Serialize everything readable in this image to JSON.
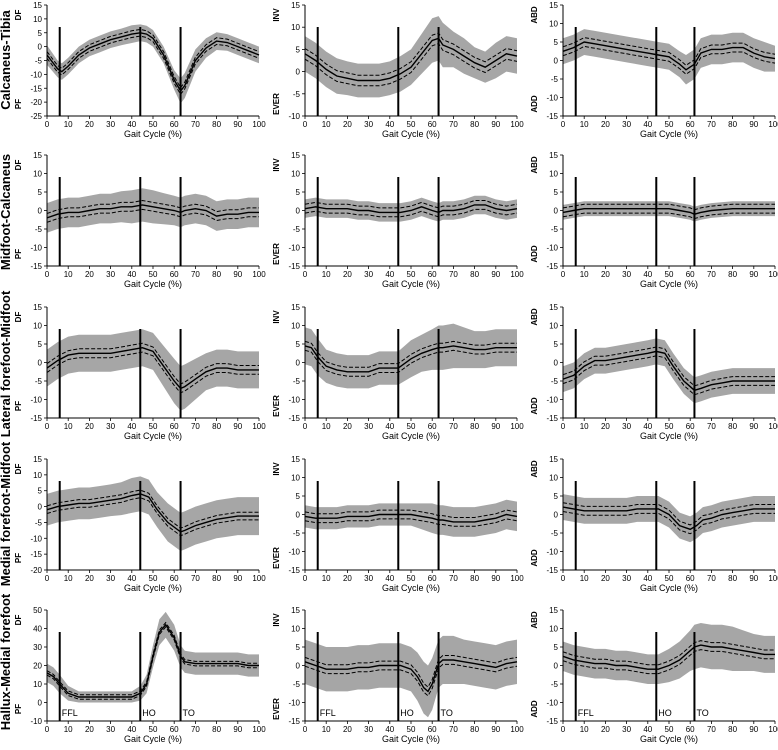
{
  "row_labels": [
    "Calcaneus-Tibia",
    "Midfoot-Calcaneus",
    "Lateral forefoot-Midfoot",
    "Medial forefoot-Midfoot",
    "Hallux-Medial forefoot"
  ],
  "x_axis": {
    "label": "Gait Cycle (%)",
    "ticks": [
      0,
      10,
      20,
      30,
      40,
      50,
      60,
      70,
      80,
      90,
      100
    ]
  },
  "event_labels": [
    "FFL",
    "HO",
    "TO"
  ],
  "colors": {
    "band": "#a6a6a6",
    "line": "#000000"
  },
  "chart_data": [
    {
      "type": "line",
      "row": 0,
      "col": 0,
      "ylim": [
        -25,
        15
      ],
      "yticks": [
        15,
        10,
        5,
        0,
        -5,
        -10,
        -15,
        -20,
        -25
      ],
      "dir_top": "DF",
      "dir_bottom": "PF",
      "events": [
        6,
        44,
        63
      ],
      "show_event_labels": false,
      "x": [
        0,
        5,
        7,
        10,
        15,
        20,
        25,
        30,
        35,
        40,
        44,
        47,
        50,
        55,
        60,
        63,
        65,
        70,
        75,
        80,
        85,
        90,
        95,
        100
      ],
      "mean": [
        -3,
        -8,
        -9,
        -7,
        -3,
        -0.5,
        1,
        2.5,
        3.5,
        4.5,
        5,
        4.5,
        3,
        -3,
        -12,
        -16,
        -14,
        -5,
        -0.5,
        2,
        1.5,
        0,
        -1.5,
        -3
      ],
      "sd": [
        3.5,
        3,
        3,
        3,
        3,
        3,
        3,
        3,
        3,
        3.2,
        3,
        3,
        3,
        3,
        3.5,
        4.5,
        4.5,
        4,
        3.5,
        3.2,
        3,
        3,
        3,
        3
      ]
    },
    {
      "type": "line",
      "row": 0,
      "col": 1,
      "ylim": [
        -10,
        15
      ],
      "yticks": [
        15,
        10,
        5,
        0,
        -5,
        -10
      ],
      "dir_top": "INV",
      "dir_bottom": "EVER",
      "events": [
        6,
        44,
        63
      ],
      "show_event_labels": false,
      "x": [
        0,
        5,
        10,
        15,
        20,
        25,
        30,
        35,
        40,
        45,
        50,
        55,
        60,
        63,
        65,
        70,
        75,
        80,
        85,
        90,
        95,
        100
      ],
      "mean": [
        4,
        2.5,
        0.5,
        -1,
        -1.5,
        -2,
        -2,
        -2,
        -1.5,
        -0.5,
        1,
        4,
        7,
        7.5,
        6,
        5,
        3.5,
        2,
        1,
        2.5,
        4,
        3.5
      ],
      "sd": [
        4,
        4,
        4,
        4,
        3.8,
        3.8,
        3.8,
        3.8,
        3.8,
        4,
        4,
        4.5,
        5,
        5,
        5,
        4,
        4,
        3.5,
        3.5,
        4,
        4,
        4
      ]
    },
    {
      "type": "line",
      "row": 0,
      "col": 2,
      "ylim": [
        -15,
        15
      ],
      "yticks": [
        15,
        10,
        5,
        0,
        -5,
        -10,
        -15
      ],
      "dir_top": "ABD",
      "dir_bottom": "ADD",
      "events": [
        6,
        44,
        62
      ],
      "show_event_labels": false,
      "x": [
        0,
        5,
        10,
        15,
        20,
        25,
        30,
        35,
        40,
        45,
        50,
        55,
        58,
        62,
        65,
        70,
        75,
        80,
        85,
        90,
        95,
        100
      ],
      "mean": [
        2.5,
        3.5,
        5,
        4.5,
        4,
        3.5,
        3,
        2.5,
        2,
        1.5,
        1,
        -1,
        -2.5,
        -1,
        2,
        3,
        3,
        3.5,
        3.5,
        2,
        1,
        0.5
      ],
      "sd": [
        3.5,
        3.5,
        3.5,
        3.5,
        3.5,
        3.5,
        3.5,
        3.5,
        3.5,
        3.5,
        3.5,
        3.5,
        4,
        4,
        4,
        4,
        4,
        4,
        4,
        4,
        4,
        3.5
      ]
    },
    {
      "type": "line",
      "row": 1,
      "col": 0,
      "ylim": [
        -15,
        15
      ],
      "yticks": [
        15,
        10,
        5,
        0,
        -5,
        -10,
        -15
      ],
      "dir_top": "DF",
      "dir_bottom": "PF",
      "events": [
        6,
        44,
        63
      ],
      "show_event_labels": false,
      "x": [
        0,
        5,
        10,
        15,
        20,
        25,
        30,
        35,
        40,
        45,
        50,
        55,
        60,
        63,
        65,
        70,
        75,
        80,
        85,
        90,
        95,
        100
      ],
      "mean": [
        -2,
        -1,
        -0.5,
        -0.5,
        0,
        0.5,
        0.5,
        1,
        1,
        1.5,
        1,
        0.5,
        0,
        -0.5,
        0,
        0.5,
        0,
        -1.5,
        -1,
        -1,
        -0.5,
        -0.5
      ],
      "sd": [
        4,
        4,
        4,
        4,
        4,
        4,
        4,
        4.2,
        4.5,
        4.5,
        4.5,
        4.2,
        4,
        4,
        4,
        4,
        4,
        4,
        4,
        4,
        4,
        4
      ]
    },
    {
      "type": "line",
      "row": 1,
      "col": 1,
      "ylim": [
        -15,
        15
      ],
      "yticks": [
        15,
        10,
        5,
        0,
        -5,
        -10,
        -15
      ],
      "dir_top": "INV",
      "dir_bottom": "EVER",
      "events": [
        6,
        44,
        63
      ],
      "show_event_labels": false,
      "x": [
        0,
        5,
        10,
        15,
        20,
        25,
        30,
        35,
        40,
        45,
        50,
        55,
        60,
        63,
        65,
        70,
        75,
        80,
        85,
        90,
        95,
        100
      ],
      "mean": [
        0.5,
        1,
        0.5,
        0.5,
        0.5,
        0,
        0,
        -0.5,
        -0.5,
        -0.5,
        0,
        1,
        0,
        -0.5,
        0,
        0,
        0.5,
        1.5,
        1.5,
        0.5,
        0,
        0.5
      ],
      "sd": [
        2.5,
        2.5,
        2.5,
        2.5,
        2.5,
        2.5,
        2.5,
        2.5,
        2.5,
        2.5,
        2.5,
        2.5,
        2.5,
        2.5,
        2.5,
        2.5,
        2.5,
        2.5,
        2.5,
        2.5,
        2.5,
        2.5
      ]
    },
    {
      "type": "line",
      "row": 1,
      "col": 2,
      "ylim": [
        -15,
        15
      ],
      "yticks": [
        15,
        10,
        5,
        0,
        -5,
        -10,
        -15
      ],
      "dir_top": "ABD",
      "dir_bottom": "ADD",
      "events": [
        6,
        44,
        62
      ],
      "show_event_labels": false,
      "x": [
        0,
        5,
        10,
        20,
        30,
        40,
        45,
        50,
        55,
        60,
        62,
        65,
        70,
        80,
        90,
        100
      ],
      "mean": [
        -0.5,
        0,
        0.5,
        0.5,
        0.5,
        0.5,
        0.5,
        0.5,
        0,
        -0.5,
        -1,
        -0.5,
        0,
        0.5,
        0.5,
        0.5
      ],
      "sd": [
        2,
        2,
        2,
        2,
        2,
        2,
        2,
        2,
        2,
        2,
        2,
        2,
        2,
        2,
        2,
        2
      ]
    },
    {
      "type": "line",
      "row": 2,
      "col": 0,
      "ylim": [
        -15,
        15
      ],
      "yticks": [
        15,
        10,
        5,
        0,
        -5,
        -10,
        -15
      ],
      "dir_top": "DF",
      "dir_bottom": "PF",
      "events": [
        6,
        44,
        63
      ],
      "show_event_labels": false,
      "x": [
        0,
        5,
        10,
        15,
        20,
        25,
        30,
        35,
        40,
        45,
        50,
        55,
        60,
        63,
        65,
        70,
        75,
        80,
        85,
        90,
        95,
        100
      ],
      "mean": [
        -1.5,
        0.5,
        2,
        2.5,
        2.5,
        2.5,
        2.5,
        3,
        3.5,
        4,
        3,
        -1,
        -5,
        -7,
        -6.5,
        -4.5,
        -2.5,
        -1.5,
        -1.5,
        -2,
        -2,
        -2
      ],
      "sd": [
        5,
        5,
        5,
        5,
        5,
        5,
        5,
        5,
        5,
        5,
        5,
        5.5,
        6,
        6,
        6,
        5.5,
        5,
        5,
        5,
        5,
        5,
        5
      ]
    },
    {
      "type": "line",
      "row": 2,
      "col": 1,
      "ylim": [
        -15,
        15
      ],
      "yticks": [
        15,
        10,
        5,
        0,
        -5,
        -10,
        -15
      ],
      "dir_top": "INV",
      "dir_bottom": "EVER",
      "events": [
        6,
        44,
        63
      ],
      "show_event_labels": false,
      "x": [
        0,
        3,
        6,
        10,
        15,
        20,
        25,
        30,
        35,
        40,
        44,
        50,
        55,
        60,
        63,
        65,
        70,
        75,
        80,
        85,
        90,
        95,
        100
      ],
      "mean": [
        4.5,
        4,
        1.5,
        -1,
        -2,
        -2.5,
        -2.5,
        -2.5,
        -1.5,
        -1.5,
        -1.5,
        1,
        2.5,
        3.5,
        4,
        4,
        4.5,
        4,
        3.5,
        3.5,
        4,
        4,
        4
      ],
      "sd": [
        5,
        5,
        5,
        4.5,
        4.5,
        4.5,
        4.5,
        4.5,
        4.5,
        4.5,
        4.5,
        5,
        5,
        5.5,
        6,
        6,
        6,
        5.5,
        5,
        5,
        5,
        5,
        5
      ]
    },
    {
      "type": "line",
      "row": 2,
      "col": 2,
      "ylim": [
        -15,
        15
      ],
      "yticks": [
        15,
        10,
        5,
        0,
        -5,
        -10,
        -15
      ],
      "dir_top": "ABD",
      "dir_bottom": "ADD",
      "events": [
        6,
        44,
        62
      ],
      "show_event_labels": false,
      "x": [
        0,
        5,
        10,
        15,
        20,
        25,
        30,
        35,
        40,
        44,
        48,
        52,
        57,
        62,
        65,
        70,
        75,
        80,
        85,
        90,
        95,
        100
      ],
      "mean": [
        -4.5,
        -3.5,
        -1,
        0.5,
        0.5,
        1,
        1.5,
        2,
        2.5,
        3,
        2.5,
        -1,
        -5,
        -7.5,
        -7,
        -6,
        -5.5,
        -5,
        -5,
        -5,
        -5,
        -5
      ],
      "sd": [
        3.5,
        3.5,
        3.5,
        3.5,
        3.5,
        3.5,
        3.5,
        3.5,
        3.5,
        3.5,
        3.5,
        3.5,
        3.5,
        3.5,
        3.5,
        3.5,
        3.5,
        3.5,
        3.5,
        3.5,
        3.5,
        3.5
      ]
    },
    {
      "type": "line",
      "row": 3,
      "col": 0,
      "ylim": [
        -20,
        15
      ],
      "yticks": [
        15,
        10,
        5,
        0,
        -5,
        -10,
        -15,
        -20
      ],
      "dir_top": "DF",
      "dir_bottom": "PF",
      "events": [
        6,
        44,
        63
      ],
      "show_event_labels": false,
      "x": [
        0,
        5,
        10,
        15,
        20,
        25,
        30,
        35,
        40,
        44,
        48,
        52,
        57,
        63,
        65,
        70,
        75,
        80,
        85,
        90,
        95,
        100
      ],
      "mean": [
        -1,
        0,
        0.5,
        1,
        1,
        1.5,
        2,
        2.5,
        3.5,
        4,
        3,
        -1,
        -5,
        -8,
        -7.5,
        -6,
        -5,
        -4,
        -3.5,
        -3,
        -3,
        -3
      ],
      "sd": [
        5,
        5,
        5,
        5,
        5,
        5,
        5,
        5.2,
        5.5,
        5.5,
        5.5,
        5.5,
        6,
        6,
        6,
        6,
        6,
        6,
        6,
        6,
        6,
        6
      ]
    },
    {
      "type": "line",
      "row": 3,
      "col": 1,
      "ylim": [
        -15,
        15
      ],
      "yticks": [
        15,
        10,
        5,
        0,
        -5,
        -10,
        -15
      ],
      "dir_top": "INV",
      "dir_bottom": "EVER",
      "events": [
        6,
        44,
        63
      ],
      "show_event_labels": false,
      "x": [
        0,
        5,
        10,
        15,
        20,
        25,
        30,
        35,
        40,
        45,
        50,
        55,
        60,
        63,
        65,
        70,
        75,
        80,
        85,
        90,
        95,
        100
      ],
      "mean": [
        -0.5,
        -1,
        -1,
        -1,
        -0.5,
        -0.5,
        -0.5,
        0,
        0,
        0,
        0,
        -0.5,
        -1,
        -1.5,
        -1.5,
        -2,
        -2,
        -2,
        -1.5,
        -1,
        0,
        -0.5
      ],
      "sd": [
        3,
        3,
        3,
        3,
        3,
        3,
        3,
        3,
        3,
        3,
        3,
        3.5,
        4,
        4,
        4,
        4,
        4,
        4,
        4,
        4,
        4,
        4
      ]
    },
    {
      "type": "line",
      "row": 3,
      "col": 2,
      "ylim": [
        -15,
        15
      ],
      "yticks": [
        15,
        10,
        5,
        0,
        -5,
        -10,
        -15
      ],
      "dir_top": "ABD",
      "dir_bottom": "ADD",
      "events": [
        6,
        44,
        62
      ],
      "show_event_labels": false,
      "x": [
        0,
        5,
        10,
        15,
        20,
        25,
        30,
        35,
        40,
        45,
        50,
        55,
        60,
        63,
        66,
        70,
        75,
        80,
        85,
        90,
        95,
        100
      ],
      "mean": [
        2,
        1.5,
        1,
        1,
        1,
        1,
        1,
        1.5,
        1.5,
        1.5,
        0,
        -3,
        -4,
        -3,
        -1.5,
        -1,
        0,
        0.5,
        1,
        1.5,
        1.5,
        1.5
      ],
      "sd": [
        3.5,
        3.5,
        3.5,
        3.5,
        3.5,
        3.5,
        3.5,
        3.5,
        3.5,
        3.5,
        3.5,
        3.5,
        3.5,
        3.5,
        3.5,
        3.5,
        3.5,
        3.5,
        3.5,
        3.5,
        3.5,
        3.5
      ]
    },
    {
      "type": "line",
      "row": 4,
      "col": 0,
      "ylim": [
        -10,
        50
      ],
      "yticks": [
        50,
        40,
        30,
        20,
        10,
        0,
        -10
      ],
      "dir_top": "DF",
      "dir_bottom": "PF",
      "events": [
        6,
        44,
        63
      ],
      "show_event_labels": true,
      "x": [
        0,
        3,
        6,
        10,
        15,
        20,
        25,
        30,
        35,
        40,
        44,
        47,
        50,
        53,
        56,
        60,
        63,
        65,
        70,
        75,
        80,
        85,
        90,
        95,
        100
      ],
      "mean": [
        16,
        14,
        10,
        5,
        3,
        3,
        3,
        3,
        3,
        3,
        5,
        10,
        25,
        38,
        42,
        35,
        25,
        22,
        21,
        21,
        21,
        21,
        21,
        20,
        20
      ],
      "sd": [
        5,
        5,
        5,
        4,
        3,
        3,
        3,
        3,
        3,
        3,
        4,
        5,
        6,
        7,
        7,
        7,
        6,
        6,
        6,
        6,
        6,
        6,
        6,
        6,
        6
      ]
    },
    {
      "type": "line",
      "row": 4,
      "col": 1,
      "ylim": [
        -15,
        15
      ],
      "yticks": [
        15,
        10,
        5,
        0,
        -5,
        -10,
        -15
      ],
      "dir_top": "INV",
      "dir_bottom": "EVER",
      "events": [
        6,
        44,
        63
      ],
      "show_event_labels": true,
      "x": [
        0,
        5,
        10,
        15,
        20,
        25,
        30,
        35,
        40,
        45,
        50,
        53,
        56,
        58,
        60,
        63,
        65,
        70,
        75,
        80,
        85,
        90,
        95,
        100
      ],
      "mean": [
        1,
        0,
        -1,
        -1,
        -1,
        -0.5,
        -0.5,
        0,
        0,
        0,
        -1,
        -3,
        -6,
        -7,
        -5,
        0.5,
        1.5,
        1.5,
        1,
        0.5,
        0,
        -0.5,
        0.5,
        1
      ],
      "sd": [
        6,
        6,
        6,
        6,
        6,
        6,
        6,
        6,
        6,
        6,
        6,
        6.5,
        7,
        7,
        7,
        6.5,
        6.5,
        6.5,
        6,
        6,
        6,
        6,
        6,
        6
      ]
    },
    {
      "type": "line",
      "row": 4,
      "col": 2,
      "ylim": [
        -15,
        15
      ],
      "yticks": [
        15,
        10,
        5,
        0,
        -5,
        -10,
        -15
      ],
      "dir_top": "ABD",
      "dir_bottom": "ADD",
      "events": [
        6,
        44,
        62
      ],
      "show_event_labels": true,
      "x": [
        0,
        5,
        10,
        15,
        20,
        25,
        30,
        35,
        40,
        45,
        50,
        55,
        60,
        62,
        65,
        70,
        75,
        80,
        85,
        90,
        95,
        100
      ],
      "mean": [
        2.5,
        1.5,
        1,
        0.5,
        0.5,
        0,
        0,
        -0.5,
        -1,
        -1,
        0,
        1.5,
        4,
        5,
        5.5,
        5,
        5,
        4.5,
        4,
        3.5,
        3,
        3
      ],
      "sd": [
        4,
        4,
        4,
        4,
        4,
        4,
        4,
        4,
        4,
        4,
        4.5,
        5,
        5.5,
        6,
        6,
        6,
        6,
        6,
        5.5,
        5,
        5,
        5
      ]
    }
  ]
}
